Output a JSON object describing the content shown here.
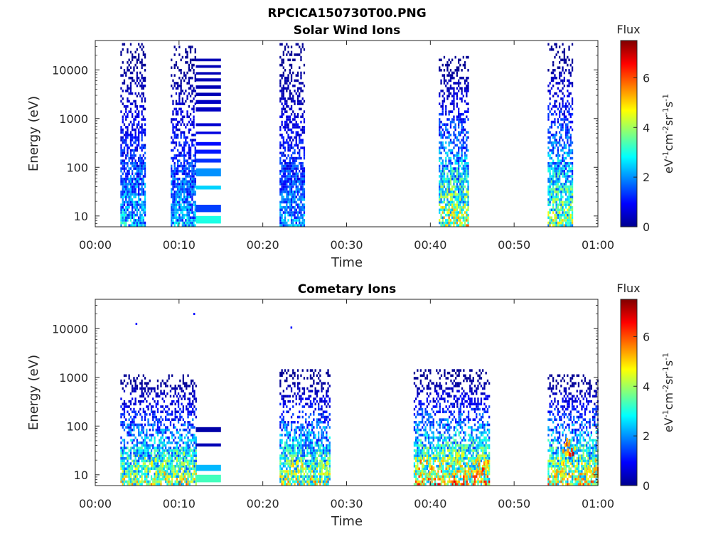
{
  "figure": {
    "title": "RPCICA150730T00.PNG",
    "xlabel": "Time",
    "ylabel": "Energy (eV)"
  },
  "colorbar": {
    "title": "Flux",
    "label_parts": [
      {
        "t": "eV",
        "sup": false
      },
      {
        "t": "-1",
        "sup": true
      },
      {
        "t": "cm",
        "sup": false
      },
      {
        "t": "-2",
        "sup": true
      },
      {
        "t": "sr",
        "sup": false
      },
      {
        "t": "-1",
        "sup": true
      },
      {
        "t": "s",
        "sup": false
      },
      {
        "t": "-1",
        "sup": true
      }
    ],
    "range": [
      0,
      7.5
    ],
    "ticks": [
      0,
      2,
      4,
      6
    ],
    "colormap": "jet"
  },
  "chart_data": [
    {
      "type": "heatmap",
      "title": "Solar Wind Ions",
      "xlabel": "Time",
      "ylabel": "Energy (eV)",
      "xlim_minutes": [
        0,
        60
      ],
      "x_ticks": [
        "00:00",
        "00:10",
        "00:20",
        "00:30",
        "00:40",
        "00:50",
        "01:00"
      ],
      "y_scale": "log",
      "ylim": [
        6,
        40000
      ],
      "y_ticks": [
        "10",
        "100",
        "1000",
        "10000"
      ],
      "bursts": [
        {
          "t_start": 3.0,
          "t_end": 6.0,
          "e_max": 35000,
          "peak_flux": 3.2
        },
        {
          "t_start": 9.0,
          "t_end": 12.0,
          "e_max": 30000,
          "peak_flux": 3.0
        },
        {
          "t_start": 22.0,
          "t_end": 25.0,
          "e_max": 35000,
          "peak_flux": 2.8
        },
        {
          "t_start": 41.0,
          "t_end": 44.5,
          "e_max": 20000,
          "peak_flux": 5.5
        },
        {
          "t_start": 54.0,
          "t_end": 57.0,
          "e_max": 35000,
          "peak_flux": 5.0
        }
      ],
      "bands_window": {
        "t_start": 12.0,
        "t_end": 15.0
      },
      "bands": [
        {
          "e_low": 15000,
          "e_high": 17000,
          "flux": 0.4
        },
        {
          "e_low": 11000,
          "e_high": 12500,
          "flux": 0.4
        },
        {
          "e_low": 8000,
          "e_high": 9000,
          "flux": 0.4
        },
        {
          "e_low": 5800,
          "e_high": 6700,
          "flux": 0.4
        },
        {
          "e_low": 4100,
          "e_high": 4800,
          "flux": 0.4
        },
        {
          "e_low": 2900,
          "e_high": 3400,
          "flux": 0.4
        },
        {
          "e_low": 2000,
          "e_high": 2400,
          "flux": 0.5
        },
        {
          "e_low": 1400,
          "e_high": 1700,
          "flux": 0.5
        },
        {
          "e_low": 700,
          "e_high": 800,
          "flux": 0.6
        },
        {
          "e_low": 480,
          "e_high": 540,
          "flux": 0.7
        },
        {
          "e_low": 280,
          "e_high": 330,
          "flux": 1.0
        },
        {
          "e_low": 190,
          "e_high": 230,
          "flux": 1.1
        },
        {
          "e_low": 125,
          "e_high": 150,
          "flux": 1.3
        },
        {
          "e_low": 65,
          "e_high": 95,
          "flux": 2.0
        },
        {
          "e_low": 35,
          "e_high": 42,
          "flux": 2.5
        },
        {
          "e_low": 12,
          "e_high": 17,
          "flux": 1.4
        },
        {
          "e_low": 7,
          "e_high": 10,
          "flux": 3.0
        }
      ]
    },
    {
      "type": "heatmap",
      "title": "Cometary Ions",
      "xlabel": "Time",
      "ylabel": "Energy (eV)",
      "xlim_minutes": [
        0,
        60
      ],
      "x_ticks": [
        "00:00",
        "00:10",
        "00:20",
        "00:30",
        "00:40",
        "00:50",
        "01:00"
      ],
      "y_scale": "log",
      "ylim": [
        6,
        40000
      ],
      "y_ticks": [
        "10",
        "100",
        "1000",
        "10000"
      ],
      "bursts": [
        {
          "t_start": 3.0,
          "t_end": 12.0,
          "e_max": 1200,
          "peak_flux": 5.5
        },
        {
          "t_start": 22.0,
          "t_end": 28.0,
          "e_max": 1400,
          "peak_flux": 5.5
        },
        {
          "t_start": 38.0,
          "t_end": 47.0,
          "e_max": 1400,
          "peak_flux": 6.5
        },
        {
          "t_start": 54.0,
          "t_end": 60.0,
          "e_max": 1200,
          "peak_flux": 6.0
        }
      ],
      "bands_window": {
        "t_start": 12.0,
        "t_end": 15.0
      },
      "bands": [
        {
          "e_low": 75,
          "e_high": 95,
          "flux": 0.3
        },
        {
          "e_low": 38,
          "e_high": 44,
          "flux": 0.4
        },
        {
          "e_low": 12,
          "e_high": 16,
          "flux": 2.3
        },
        {
          "e_low": 7,
          "e_high": 10,
          "flux": 3.3
        }
      ],
      "hot_spots": [
        {
          "t": 7.5,
          "e": 12,
          "flux": 5.5
        },
        {
          "t": 10.5,
          "e": 20,
          "flux": 4.5
        },
        {
          "t": 24.0,
          "e": 12,
          "flux": 5.3
        },
        {
          "t": 27.0,
          "e": 12,
          "flux": 5.0
        },
        {
          "t": 39.5,
          "e": 12,
          "flux": 6.0
        },
        {
          "t": 43.0,
          "e": 18,
          "flux": 5.5
        },
        {
          "t": 46.0,
          "e": 12,
          "flux": 6.5
        },
        {
          "t": 55.5,
          "e": 12,
          "flux": 5.5
        },
        {
          "t": 56.5,
          "e": 30,
          "flux": 7.0
        },
        {
          "t": 59.0,
          "e": 12,
          "flux": 6.0
        }
      ],
      "isolated_points": [
        {
          "t": 4.8,
          "e": 12500,
          "flux": 1.0
        },
        {
          "t": 11.7,
          "e": 20000,
          "flux": 1.0
        },
        {
          "t": 23.3,
          "e": 10500,
          "flux": 1.0
        }
      ]
    }
  ]
}
